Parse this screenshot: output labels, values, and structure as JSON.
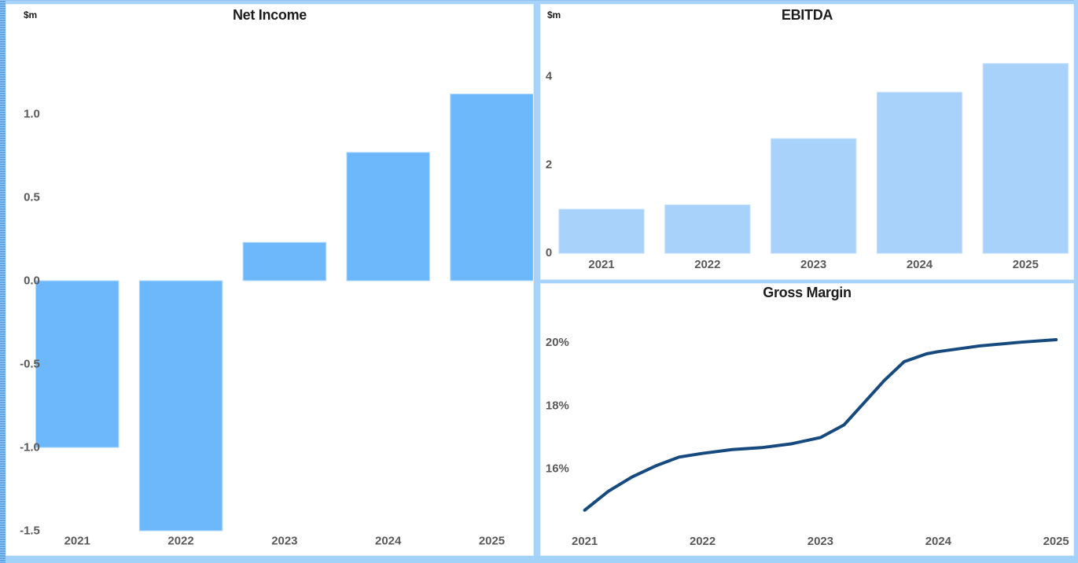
{
  "window": {
    "background": "#ffffff",
    "frame_color": "#a7d3fa",
    "bottom_edge_color": "#a3d2f8",
    "left_edge_color": "#5ea6e9"
  },
  "chart_data": [
    {
      "id": "net-income",
      "type": "bar",
      "title": "Net Income",
      "unit_label": "$m",
      "categories": [
        "2021",
        "2022",
        "2023",
        "2024",
        "2025"
      ],
      "values": [
        -1.0,
        -1.5,
        0.23,
        0.77,
        1.12
      ],
      "ylim": [
        -1.542,
        1.5
      ],
      "yticks": [
        {
          "label": "1.0",
          "value": 1.0
        },
        {
          "label": "0.5",
          "value": 0.5
        },
        {
          "label": "0.0",
          "value": 0.0
        },
        {
          "label": "-0.5",
          "value": -0.5
        },
        {
          "label": "-1.0",
          "value": -1.0
        },
        {
          "label": "-1.5",
          "value": -1.5
        }
      ],
      "bar_color": "#6cb8fb",
      "bar_stroke": "#b7dbfc",
      "grid": false,
      "legend": "none"
    },
    {
      "id": "ebitda",
      "type": "bar",
      "title": "EBITDA",
      "unit_label": "$m",
      "categories": [
        "2021",
        "2022",
        "2023",
        "2024",
        "2025"
      ],
      "values": [
        1.0,
        1.1,
        2.6,
        3.65,
        4.3
      ],
      "ylim": [
        0,
        5.1
      ],
      "yticks": [
        {
          "label": "4",
          "value": 4
        },
        {
          "label": "2",
          "value": 2
        },
        {
          "label": "0",
          "value": 0
        }
      ],
      "bar_color": "#a8d2fa",
      "bar_stroke": "#c9e3fc",
      "grid": false,
      "legend": "none"
    },
    {
      "id": "gross-margin",
      "type": "line",
      "title": "Gross Margin",
      "categories": [
        "2021",
        "2022",
        "2023",
        "2024",
        "2025"
      ],
      "values": [
        14.7,
        16.5,
        17.0,
        19.7,
        20.1
      ],
      "unit": "%",
      "ylim": [
        14.0,
        21.9
      ],
      "yticks": [
        {
          "label": "20%",
          "value": 20
        },
        {
          "label": "18%",
          "value": 18
        },
        {
          "label": "16%",
          "value": 16
        }
      ],
      "curve_points": [
        [
          2021.0,
          14.7
        ],
        [
          2021.2,
          15.3
        ],
        [
          2021.4,
          15.75
        ],
        [
          2021.6,
          16.1
        ],
        [
          2021.8,
          16.38
        ],
        [
          2022.0,
          16.5
        ],
        [
          2022.25,
          16.62
        ],
        [
          2022.5,
          16.68
        ],
        [
          2022.75,
          16.8
        ],
        [
          2023.0,
          17.0
        ],
        [
          2023.2,
          17.4
        ],
        [
          2023.37,
          18.1
        ],
        [
          2023.54,
          18.8
        ],
        [
          2023.71,
          19.4
        ],
        [
          2023.9,
          19.65
        ],
        [
          2024.0,
          19.72
        ],
        [
          2024.35,
          19.9
        ],
        [
          2024.7,
          20.02
        ],
        [
          2025.0,
          20.1
        ]
      ],
      "line_color": "#164a7e",
      "line_width": 4,
      "grid": false,
      "legend": "none"
    }
  ]
}
